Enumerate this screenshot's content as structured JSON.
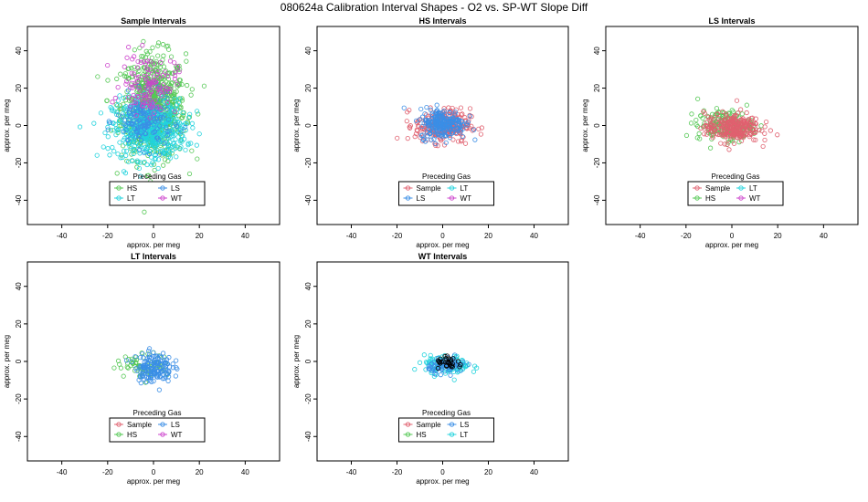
{
  "figure_title": "080624a   Calibration Interval Shapes - O2 vs. SP-WT Slope Diff",
  "colors": {
    "Sample": "#e0606f",
    "HS": "#55c855",
    "LS": "#3a8ee6",
    "LT": "#22d3dd",
    "WT": "#cc44cc",
    "black": "#000000"
  },
  "chart_data": [
    {
      "type": "scatter",
      "title": "Sample Intervals",
      "xlabel": "approx. per meg",
      "ylabel": "approx. per meg",
      "xlim": [
        -55,
        55
      ],
      "ylim": [
        -53,
        53
      ],
      "xticks": [
        -40,
        -20,
        0,
        20,
        40
      ],
      "yticks": [
        -40,
        -20,
        0,
        20,
        40
      ],
      "legend": {
        "title": "Preceding Gas",
        "placement": "bottom-center",
        "entries": [
          "HS",
          "LS",
          "LT",
          "WT"
        ]
      },
      "series": [
        {
          "name": "HS",
          "center": [
            0,
            10
          ],
          "spread": [
            7,
            14
          ],
          "count": 700
        },
        {
          "name": "LT",
          "center": [
            -2,
            -2
          ],
          "spread": [
            8,
            8
          ],
          "count": 500
        },
        {
          "name": "LS",
          "center": [
            -4,
            2
          ],
          "spread": [
            6,
            7
          ],
          "count": 150
        },
        {
          "name": "WT",
          "center": [
            -2,
            22
          ],
          "spread": [
            6,
            8
          ],
          "count": 120
        }
      ]
    },
    {
      "type": "scatter",
      "title": "HS Intervals",
      "xlabel": "approx. per meg",
      "ylabel": "approx. per meg",
      "xlim": [
        -55,
        55
      ],
      "ylim": [
        -53,
        53
      ],
      "xticks": [
        -40,
        -20,
        0,
        20,
        40
      ],
      "yticks": [
        -40,
        -20,
        0,
        20,
        40
      ],
      "legend": {
        "title": "Preceding Gas",
        "placement": "bottom-center",
        "entries": [
          "Sample",
          "LT",
          "LS",
          "WT"
        ]
      },
      "series": [
        {
          "name": "Sample",
          "center": [
            0,
            0
          ],
          "spread": [
            6,
            4.5
          ],
          "count": 260
        },
        {
          "name": "LS",
          "center": [
            0,
            1
          ],
          "spread": [
            5,
            4
          ],
          "count": 220
        }
      ]
    },
    {
      "type": "scatter",
      "title": "LS Intervals",
      "xlabel": "approx. per meg",
      "ylabel": "approx. per meg",
      "xlim": [
        -55,
        55
      ],
      "ylim": [
        -53,
        53
      ],
      "xticks": [
        -40,
        -20,
        0,
        20,
        40
      ],
      "yticks": [
        -40,
        -20,
        0,
        20,
        40
      ],
      "legend": {
        "title": "Preceding Gas",
        "placement": "bottom-center",
        "entries": [
          "Sample",
          "LT",
          "HS",
          "WT"
        ]
      },
      "series": [
        {
          "name": "HS",
          "center": [
            -3,
            0
          ],
          "spread": [
            6,
            4
          ],
          "count": 180
        },
        {
          "name": "Sample",
          "center": [
            0,
            -1
          ],
          "spread": [
            6,
            4
          ],
          "count": 260
        }
      ]
    },
    {
      "type": "scatter",
      "title": "LT Intervals",
      "xlabel": "approx. per meg",
      "ylabel": "approx. per meg",
      "xlim": [
        -55,
        55
      ],
      "ylim": [
        -53,
        53
      ],
      "xticks": [
        -40,
        -20,
        0,
        20,
        40
      ],
      "yticks": [
        -40,
        -20,
        0,
        20,
        40
      ],
      "legend": {
        "title": "Preceding Gas",
        "placement": "bottom-center",
        "entries": [
          "Sample",
          "LS",
          "HS",
          "WT"
        ]
      },
      "series": [
        {
          "name": "HS",
          "center": [
            -4,
            -2
          ],
          "spread": [
            6,
            3
          ],
          "count": 60
        },
        {
          "name": "LS",
          "center": [
            0,
            -3
          ],
          "spread": [
            4,
            4
          ],
          "count": 160
        }
      ]
    },
    {
      "type": "scatter",
      "title": "WT Intervals",
      "xlabel": "approx. per meg",
      "ylabel": "approx. per meg",
      "xlim": [
        -55,
        55
      ],
      "ylim": [
        -53,
        53
      ],
      "xticks": [
        -40,
        -20,
        0,
        20,
        40
      ],
      "yticks": [
        -40,
        -20,
        0,
        20,
        40
      ],
      "legend": {
        "title": "Preceding Gas",
        "placement": "bottom-center",
        "entries": [
          "Sample",
          "LS",
          "HS",
          "LT"
        ]
      },
      "series": [
        {
          "name": "LT",
          "center": [
            2,
            -2
          ],
          "spread": [
            5,
            2.5
          ],
          "count": 130
        },
        {
          "name": "LS",
          "center": [
            2,
            -2
          ],
          "spread": [
            4,
            2
          ],
          "count": 80
        },
        {
          "name": "black",
          "center": [
            3,
            -1
          ],
          "spread": [
            3,
            1.5
          ],
          "count": 30
        }
      ]
    }
  ]
}
